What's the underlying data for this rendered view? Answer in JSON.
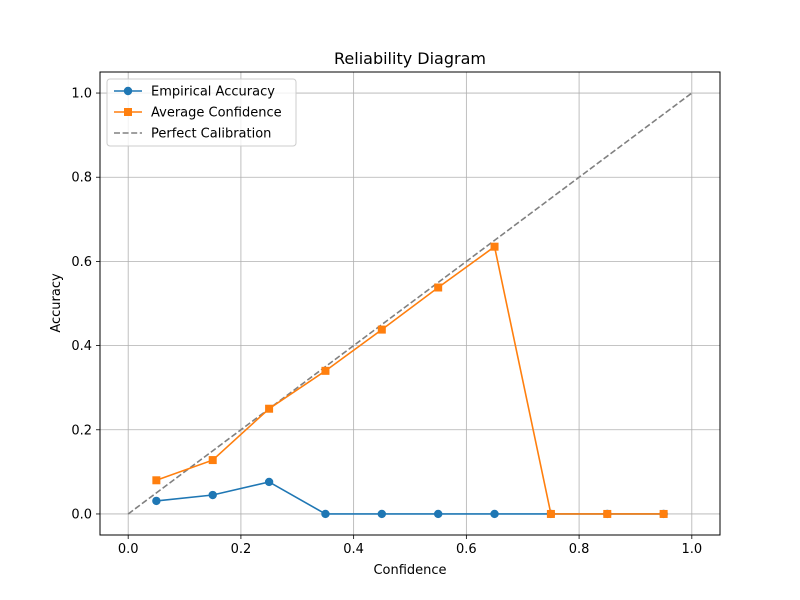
{
  "chart_data": {
    "type": "line",
    "title": "Reliability Diagram",
    "xlabel": "Confidence",
    "ylabel": "Accuracy",
    "xlim": [
      -0.05,
      1.05
    ],
    "ylim": [
      -0.05,
      1.05
    ],
    "grid": true,
    "legend_position": "top-left",
    "x_ticks": [
      "0.0",
      "0.2",
      "0.4",
      "0.6",
      "0.8",
      "1.0"
    ],
    "y_ticks": [
      "0.0",
      "0.2",
      "0.4",
      "0.6",
      "0.8",
      "1.0"
    ],
    "x": [
      0.05,
      0.15,
      0.25,
      0.35,
      0.45,
      0.55,
      0.65,
      0.75,
      0.85,
      0.95
    ],
    "series": [
      {
        "name": "Empirical Accuracy",
        "color": "#1f77b4",
        "marker": "circle",
        "values": [
          0.031,
          0.045,
          0.076,
          0.0,
          0.0,
          0.0,
          0.0,
          0.0,
          0.0,
          0.0
        ]
      },
      {
        "name": "Average Confidence",
        "color": "#ff7f0e",
        "marker": "square",
        "values": [
          0.08,
          0.128,
          0.25,
          0.34,
          0.438,
          0.538,
          0.635,
          0.0,
          0.0,
          0.0
        ]
      }
    ],
    "reference_line": {
      "name": "Perfect Calibration",
      "color": "#808080",
      "style": "dashed",
      "x": [
        0.0,
        1.0
      ],
      "y": [
        0.0,
        1.0
      ]
    }
  }
}
